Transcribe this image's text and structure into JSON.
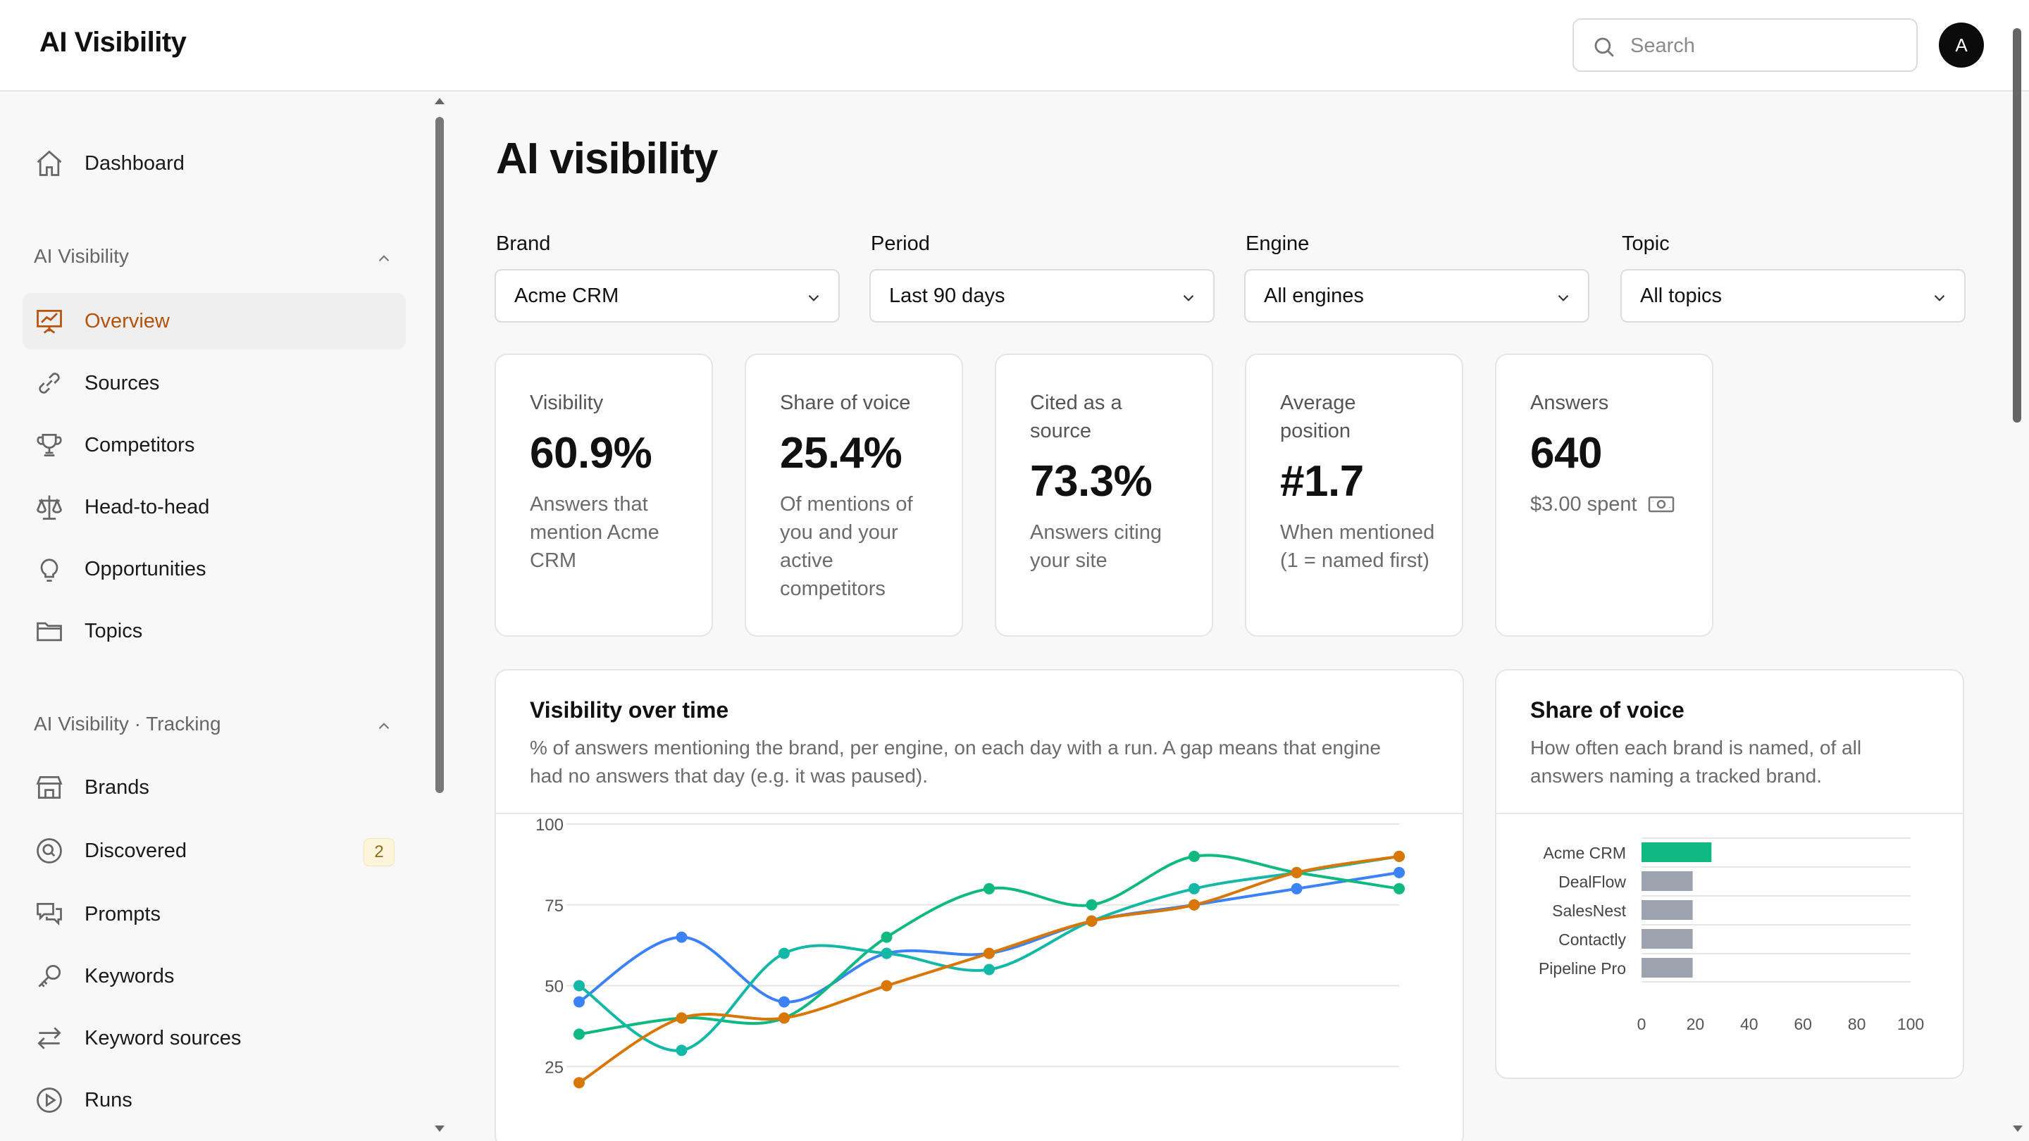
{
  "app": {
    "title": "AI Visibility"
  },
  "header": {
    "search_placeholder": "Search",
    "avatar_initial": "A"
  },
  "sidebar": {
    "dashboard": "Dashboard",
    "section1": {
      "label": "AI Visibility",
      "items": [
        {
          "label": "Overview",
          "icon": "presentation-chart-icon"
        },
        {
          "label": "Sources",
          "icon": "link-icon"
        },
        {
          "label": "Competitors",
          "icon": "trophy-icon"
        },
        {
          "label": "Head-to-head",
          "icon": "scale-icon"
        },
        {
          "label": "Opportunities",
          "icon": "lightbulb-icon"
        },
        {
          "label": "Topics",
          "icon": "folder-icon"
        }
      ]
    },
    "section2": {
      "label": "AI Visibility · Tracking",
      "items": [
        {
          "label": "Brands",
          "icon": "storefront-icon"
        },
        {
          "label": "Discovered",
          "icon": "magnifier-circle-icon",
          "badge": "2"
        },
        {
          "label": "Prompts",
          "icon": "chat-bubbles-icon"
        },
        {
          "label": "Keywords",
          "icon": "key-icon"
        },
        {
          "label": "Keyword sources",
          "icon": "arrows-right-left-icon"
        },
        {
          "label": "Runs",
          "icon": "play-circle-icon"
        }
      ]
    }
  },
  "main": {
    "title": "AI visibility",
    "filters": [
      {
        "label": "Brand",
        "value": "Acme CRM"
      },
      {
        "label": "Period",
        "value": "Last 90 days"
      },
      {
        "label": "Engine",
        "value": "All engines"
      },
      {
        "label": "Topic",
        "value": "All topics"
      }
    ],
    "kpis": [
      {
        "label": "Visibility",
        "value": "60.9%",
        "desc": "Answers that mention Acme CRM"
      },
      {
        "label": "Share of voice",
        "value": "25.4%",
        "desc": "Of mentions of you and your active competitors"
      },
      {
        "label": "Cited as a source",
        "value": "73.3%",
        "desc": "Answers citing your site"
      },
      {
        "label": "Average position",
        "value": "#1.7",
        "desc": "When mentioned (1 = named first)"
      },
      {
        "label": "Answers",
        "value": "640",
        "desc": "$3.00 spent"
      }
    ],
    "visibility_panel": {
      "title": "Visibility over time",
      "subtitle": "% of answers mentioning the brand, per engine, on each day with a run. A gap means that engine had no answers that day (e.g. it was paused)."
    },
    "sov_panel": {
      "title": "Share of voice",
      "subtitle": "How often each brand is named, of all answers naming a tracked brand."
    }
  },
  "chart_data": [
    {
      "type": "line",
      "title": "Visibility over time",
      "ylim": [
        0,
        100
      ],
      "yticks": [
        25,
        50,
        75,
        100
      ],
      "x": [
        0,
        1,
        2,
        3,
        4,
        5,
        6,
        7,
        8
      ],
      "series": [
        {
          "color": "#3b82f6",
          "values": [
            45,
            65,
            45,
            60,
            60,
            70,
            75,
            80,
            85
          ]
        },
        {
          "color": "#10b981",
          "values": [
            35,
            40,
            40,
            65,
            80,
            75,
            90,
            85,
            80
          ]
        },
        {
          "color": "#14b8a6",
          "values": [
            50,
            30,
            60,
            60,
            55,
            70,
            80,
            85,
            90
          ]
        },
        {
          "color": "#d97706",
          "values": [
            20,
            40,
            40,
            50,
            60,
            70,
            75,
            85,
            90
          ]
        }
      ]
    },
    {
      "type": "bar",
      "orientation": "horizontal",
      "title": "Share of voice",
      "categories": [
        "Acme CRM",
        "DealFlow",
        "SalesNest",
        "Contactly",
        "Pipeline Pro"
      ],
      "values": [
        26,
        19,
        19,
        19,
        19
      ],
      "colors": [
        "#10b981",
        "#9ca3af",
        "#9ca3af",
        "#9ca3af",
        "#9ca3af"
      ],
      "xlim": [
        0,
        100
      ],
      "xticks": [
        0,
        20,
        40,
        60,
        80,
        100
      ]
    }
  ]
}
